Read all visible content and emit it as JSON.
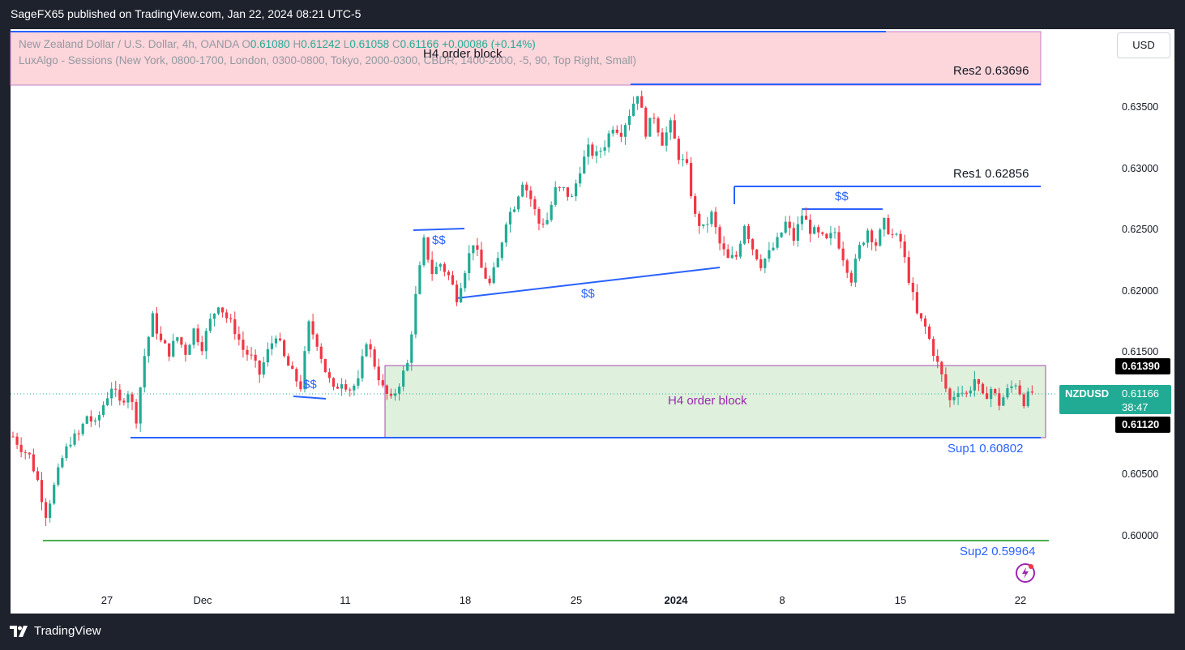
{
  "header": {
    "published_text": "SageFX65 published on TradingView.com, Jan 22, 2024 08:21 UTC-5"
  },
  "legend": {
    "symbol_desc": "New Zealand Dollar / U.S. Dollar, 4h, OANDA",
    "open_label": "O",
    "open": "0.61080",
    "high_label": "H",
    "high": "0.61242",
    "low_label": "L",
    "low": "0.61058",
    "close_label": "C",
    "close": "0.61166",
    "change": "+0.00086 (+0.14%)",
    "indicator": "LuxAlgo - Sessions (New York, 0800-1700, London, 0300-0800, Tokyo, 2000-0300, CBDR, 1400-2000, -5, 90, Top Right, Small)"
  },
  "currency_button": "USD",
  "price_axis": {
    "ticks": [
      "0.63500",
      "0.63000",
      "0.62500",
      "0.62000",
      "0.61500",
      "0.60500",
      "0.60000"
    ]
  },
  "time_axis": {
    "ticks": [
      "27",
      "Dec",
      "11",
      "18",
      "25",
      "2024",
      "8",
      "15",
      "22"
    ]
  },
  "annotations": {
    "res2": "Res2 0.63696",
    "res1": "Res1 0.62856",
    "sup1": "Sup1  0.60802",
    "sup2": "Sup2 0.59964",
    "order_block_top": "H4 order block",
    "order_block_bottom": "H4 order block",
    "liquidity_label": "$$"
  },
  "price_tags": {
    "upper": "0.61390",
    "symbol": "NZDUSD",
    "current": "0.61166",
    "countdown": "38:47",
    "lower": "0.61120"
  },
  "footer": {
    "brand": "TradingView"
  },
  "colors": {
    "bull": "#22ab94",
    "bear": "#f23645",
    "line_blue": "#2962ff",
    "sup2_green": "#4caf50",
    "ob_red_fill": "#fcd6db",
    "ob_green_fill": "#dff0dd"
  },
  "chart_data": {
    "type": "candlestick",
    "symbol": "NZDUSD",
    "timeframe": "4h",
    "ylim": [
      0.5965,
      0.6405
    ],
    "levels": [
      {
        "name": "Res2",
        "value": 0.63696
      },
      {
        "name": "Res1",
        "value": 0.62856
      },
      {
        "name": "Sup1",
        "value": 0.60802
      },
      {
        "name": "Sup2",
        "value": 0.59964
      }
    ],
    "zones": [
      {
        "name": "H4 order block",
        "from": 0.6369,
        "to": 0.6413,
        "color": "red"
      },
      {
        "name": "H4 order block",
        "from": 0.608,
        "to": 0.6139,
        "color": "green"
      }
    ],
    "path": [
      [
        0,
        0.6081
      ],
      [
        2,
        0.6072
      ],
      [
        4,
        0.6065
      ],
      [
        6,
        0.6045
      ],
      [
        8,
        0.6018
      ],
      [
        10,
        0.604
      ],
      [
        12,
        0.6063
      ],
      [
        14,
        0.6078
      ],
      [
        16,
        0.6082
      ],
      [
        18,
        0.6098
      ],
      [
        20,
        0.609
      ],
      [
        22,
        0.6107
      ],
      [
        24,
        0.6122
      ],
      [
        26,
        0.6108
      ],
      [
        28,
        0.6118
      ],
      [
        30,
        0.6096
      ],
      [
        32,
        0.6147
      ],
      [
        34,
        0.6178
      ],
      [
        36,
        0.6158
      ],
      [
        38,
        0.615
      ],
      [
        40,
        0.6162
      ],
      [
        42,
        0.615
      ],
      [
        44,
        0.6168
      ],
      [
        46,
        0.6155
      ],
      [
        48,
        0.6175
      ],
      [
        50,
        0.619
      ],
      [
        52,
        0.6178
      ],
      [
        54,
        0.6168
      ],
      [
        56,
        0.6152
      ],
      [
        58,
        0.6145
      ],
      [
        60,
        0.6132
      ],
      [
        62,
        0.615
      ],
      [
        64,
        0.6165
      ],
      [
        66,
        0.6145
      ],
      [
        68,
        0.6132
      ],
      [
        70,
        0.6122
      ],
      [
        72,
        0.6172
      ],
      [
        74,
        0.6158
      ],
      [
        76,
        0.6135
      ],
      [
        78,
        0.6118
      ],
      [
        80,
        0.6127
      ],
      [
        82,
        0.612
      ],
      [
        84,
        0.6125
      ],
      [
        86,
        0.616
      ],
      [
        88,
        0.614
      ],
      [
        90,
        0.612
      ],
      [
        92,
        0.611
      ],
      [
        94,
        0.6125
      ],
      [
        96,
        0.614
      ],
      [
        98,
        0.6195
      ],
      [
        100,
        0.624
      ],
      [
        102,
        0.6215
      ],
      [
        104,
        0.6222
      ],
      [
        106,
        0.6212
      ],
      [
        108,
        0.6195
      ],
      [
        110,
        0.6218
      ],
      [
        112,
        0.624
      ],
      [
        114,
        0.6218
      ],
      [
        116,
        0.6205
      ],
      [
        118,
        0.6225
      ],
      [
        120,
        0.6258
      ],
      [
        122,
        0.627
      ],
      [
        124,
        0.629
      ],
      [
        126,
        0.6275
      ],
      [
        128,
        0.6255
      ],
      [
        130,
        0.6258
      ],
      [
        132,
        0.6282
      ],
      [
        134,
        0.6282
      ],
      [
        136,
        0.6275
      ],
      [
        138,
        0.63
      ],
      [
        140,
        0.6315
      ],
      [
        142,
        0.631
      ],
      [
        144,
        0.632
      ],
      [
        146,
        0.6335
      ],
      [
        148,
        0.633
      ],
      [
        150,
        0.6345
      ],
      [
        152,
        0.6362
      ],
      [
        154,
        0.633
      ],
      [
        156,
        0.6343
      ],
      [
        158,
        0.6322
      ],
      [
        160,
        0.6335
      ],
      [
        162,
        0.631
      ],
      [
        164,
        0.63
      ],
      [
        166,
        0.626
      ],
      [
        168,
        0.625
      ],
      [
        170,
        0.6262
      ],
      [
        172,
        0.6238
      ],
      [
        174,
        0.6225
      ],
      [
        176,
        0.6228
      ],
      [
        178,
        0.6255
      ],
      [
        180,
        0.6235
      ],
      [
        182,
        0.6222
      ],
      [
        184,
        0.623
      ],
      [
        186,
        0.624
      ],
      [
        188,
        0.6255
      ],
      [
        190,
        0.6242
      ],
      [
        192,
        0.6262
      ],
      [
        194,
        0.625
      ],
      [
        196,
        0.6245
      ],
      [
        198,
        0.624
      ],
      [
        200,
        0.6248
      ],
      [
        202,
        0.6228
      ],
      [
        204,
        0.621
      ],
      [
        206,
        0.6235
      ],
      [
        208,
        0.625
      ],
      [
        210,
        0.6238
      ],
      [
        212,
        0.6255
      ],
      [
        214,
        0.6245
      ],
      [
        216,
        0.624
      ],
      [
        218,
        0.621
      ],
      [
        220,
        0.618
      ],
      [
        222,
        0.617
      ],
      [
        224,
        0.615
      ],
      [
        226,
        0.613
      ],
      [
        228,
        0.611
      ],
      [
        230,
        0.612
      ],
      [
        232,
        0.6115
      ],
      [
        234,
        0.6128
      ],
      [
        236,
        0.6112
      ],
      [
        238,
        0.612
      ],
      [
        240,
        0.6108
      ],
      [
        242,
        0.6118
      ],
      [
        244,
        0.6125
      ],
      [
        246,
        0.611
      ],
      [
        248,
        0.6117
      ]
    ]
  }
}
